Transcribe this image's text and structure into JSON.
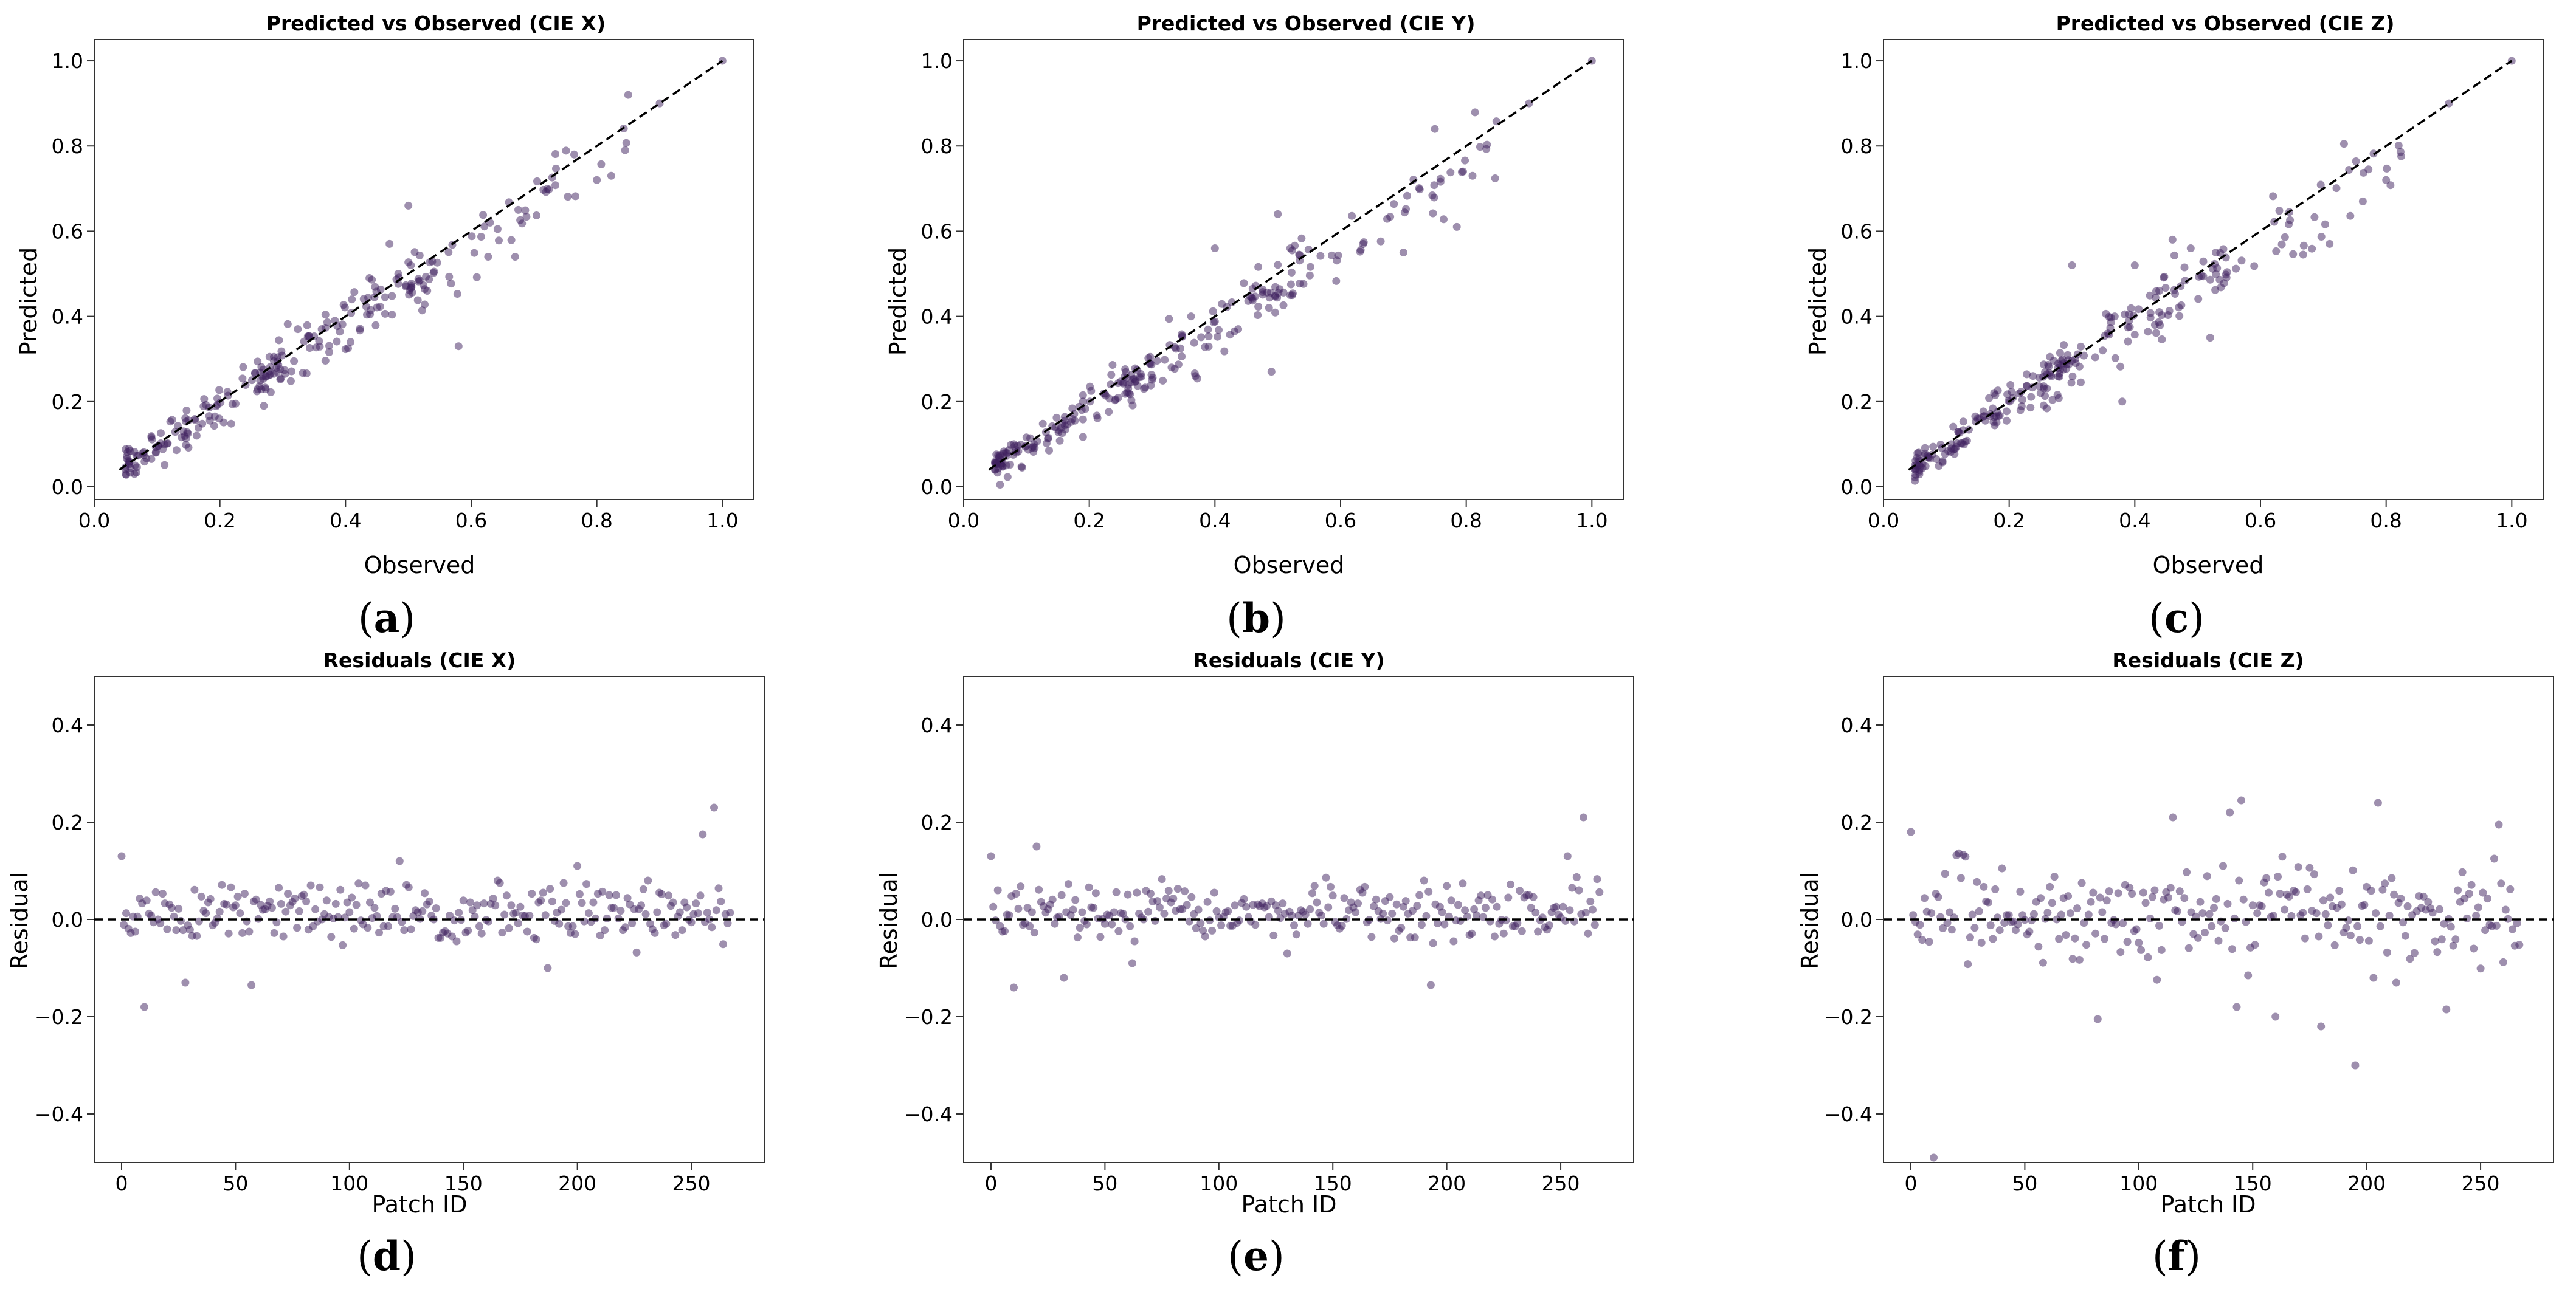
{
  "colors": {
    "point": "#3e1f5e",
    "line": "#000000",
    "axis": "#333333"
  },
  "chart_data": [
    {
      "id": "a",
      "type": "scatter",
      "kind": "pred_obs",
      "title": "Predicted vs Observed (CIE X)",
      "xlabel": "Observed",
      "ylabel": "Predicted",
      "xlim": [
        -0.0,
        1.05
      ],
      "ylim": [
        -0.03,
        1.05
      ],
      "xticks": [
        0.0,
        0.2,
        0.4,
        0.6,
        0.8,
        1.0
      ],
      "yticks": [
        0.0,
        0.2,
        0.4,
        0.6,
        0.8,
        1.0
      ],
      "xtick_labels": [
        "0.0",
        "0.2",
        "0.4",
        "0.6",
        "0.8",
        "1.0"
      ],
      "ytick_labels": [
        "0.0",
        "0.2",
        "0.4",
        "0.6",
        "0.8",
        "1.0"
      ],
      "panel_label": "a",
      "slope": 0.96,
      "noise": 0.045,
      "seed": 11,
      "outliers": [
        [
          0.58,
          0.33
        ],
        [
          0.5,
          0.66
        ],
        [
          0.85,
          0.92
        ],
        [
          0.67,
          0.54
        ],
        [
          0.8,
          0.72
        ],
        [
          0.53,
          0.46
        ],
        [
          0.47,
          0.57
        ]
      ],
      "points": [],
      "reference_line": {
        "style": "dashed",
        "from": [
          0.04,
          0.04
        ],
        "to": [
          1.0,
          1.0
        ]
      }
    },
    {
      "id": "b",
      "type": "scatter",
      "kind": "pred_obs",
      "title": "Predicted vs Observed (CIE Y)",
      "xlabel": "Observed",
      "ylabel": "Predicted",
      "xlim": [
        -0.0,
        1.05
      ],
      "ylim": [
        -0.03,
        1.05
      ],
      "xticks": [
        0.0,
        0.2,
        0.4,
        0.6,
        0.8,
        1.0
      ],
      "yticks": [
        0.0,
        0.2,
        0.4,
        0.6,
        0.8,
        1.0
      ],
      "xtick_labels": [
        "0.0",
        "0.2",
        "0.4",
        "0.6",
        "0.8",
        "1.0"
      ],
      "ytick_labels": [
        "0.0",
        "0.2",
        "0.4",
        "0.6",
        "0.8",
        "1.0"
      ],
      "panel_label": "b",
      "slope": 0.93,
      "noise": 0.04,
      "seed": 23,
      "outliers": [
        [
          0.4,
          0.56
        ],
        [
          0.49,
          0.27
        ],
        [
          0.5,
          0.64
        ],
        [
          0.7,
          0.55
        ],
        [
          0.75,
          0.84
        ],
        [
          0.81,
          0.73
        ],
        [
          0.52,
          0.45
        ]
      ],
      "points": [],
      "reference_line": {
        "style": "dashed",
        "from": [
          0.04,
          0.04
        ],
        "to": [
          1.0,
          1.0
        ]
      }
    },
    {
      "id": "c",
      "type": "scatter",
      "kind": "pred_obs",
      "title": "Predicted vs Observed (CIE Z)",
      "xlabel": "Observed",
      "ylabel": "Predicted",
      "xlim": [
        -0.0,
        1.05
      ],
      "ylim": [
        -0.03,
        1.05
      ],
      "xticks": [
        0.0,
        0.2,
        0.4,
        0.6,
        0.8,
        1.0
      ],
      "yticks": [
        0.0,
        0.2,
        0.4,
        0.6,
        0.8,
        1.0
      ],
      "xtick_labels": [
        "0.0",
        "0.2",
        "0.4",
        "0.6",
        "0.8",
        "1.0"
      ],
      "ytick_labels": [
        "0.0",
        "0.2",
        "0.4",
        "0.6",
        "0.8",
        "1.0"
      ],
      "panel_label": "c",
      "slope": 0.97,
      "noise": 0.045,
      "seed": 37,
      "outliers": [
        [
          0.3,
          0.52
        ],
        [
          0.4,
          0.52
        ],
        [
          0.46,
          0.58
        ],
        [
          0.52,
          0.35
        ],
        [
          0.71,
          0.57
        ],
        [
          0.8,
          0.72
        ],
        [
          0.38,
          0.2
        ]
      ],
      "points": [],
      "reference_line": {
        "style": "dashed",
        "from": [
          0.04,
          0.04
        ],
        "to": [
          1.0,
          1.0
        ]
      }
    },
    {
      "id": "d",
      "type": "scatter",
      "kind": "residual",
      "title": "Residuals (CIE X)",
      "xlabel": "Patch ID",
      "ylabel": "Residual",
      "xlim": [
        -12,
        282
      ],
      "ylim": [
        -0.5,
        0.5
      ],
      "xticks": [
        0,
        50,
        100,
        150,
        200,
        250
      ],
      "yticks": [
        -0.4,
        -0.2,
        0.0,
        0.2,
        0.4
      ],
      "xtick_labels": [
        "0",
        "50",
        "100",
        "150",
        "200",
        "250"
      ],
      "ytick_labels": [
        "−0.4",
        "−0.2",
        "0.0",
        "0.2",
        "0.4"
      ],
      "panel_label": "d",
      "n": 268,
      "noise": 0.045,
      "seed": 51,
      "outliers": [
        [
          0,
          0.13
        ],
        [
          10,
          -0.18
        ],
        [
          28,
          -0.13
        ],
        [
          57,
          -0.135
        ],
        [
          122,
          0.12
        ],
        [
          200,
          0.11
        ],
        [
          255,
          0.175
        ],
        [
          260,
          0.23
        ],
        [
          187,
          -0.1
        ]
      ],
      "points": [],
      "reference_line": {
        "style": "dashed",
        "y": 0.0
      }
    },
    {
      "id": "e",
      "type": "scatter",
      "kind": "residual",
      "title": "Residuals (CIE Y)",
      "xlabel": "Patch ID",
      "ylabel": "Residual",
      "xlim": [
        -12,
        282
      ],
      "ylim": [
        -0.5,
        0.5
      ],
      "xticks": [
        0,
        50,
        100,
        150,
        200,
        250
      ],
      "yticks": [
        -0.4,
        -0.2,
        0.0,
        0.2,
        0.4
      ],
      "xtick_labels": [
        "0",
        "50",
        "100",
        "150",
        "200",
        "250"
      ],
      "ytick_labels": [
        "−0.4",
        "−0.2",
        "0.0",
        "0.2",
        "0.4"
      ],
      "panel_label": "e",
      "n": 268,
      "noise": 0.04,
      "seed": 67,
      "outliers": [
        [
          0,
          0.13
        ],
        [
          10,
          -0.14
        ],
        [
          20,
          0.15
        ],
        [
          32,
          -0.12
        ],
        [
          62,
          -0.09
        ],
        [
          193,
          -0.135
        ],
        [
          260,
          0.21
        ],
        [
          253,
          0.13
        ]
      ],
      "points": [],
      "reference_line": {
        "style": "dashed",
        "y": 0.0
      }
    },
    {
      "id": "f",
      "type": "scatter",
      "kind": "residual",
      "title": "Residuals (CIE Z)",
      "xlabel": "Patch ID",
      "ylabel": "Residual",
      "xlim": [
        -12,
        282
      ],
      "ylim": [
        -0.5,
        0.5
      ],
      "xticks": [
        0,
        50,
        100,
        150,
        200,
        250
      ],
      "yticks": [
        -0.4,
        -0.2,
        0.0,
        0.2,
        0.4
      ],
      "xtick_labels": [
        "0",
        "50",
        "100",
        "150",
        "200",
        "250"
      ],
      "ytick_labels": [
        "−0.4",
        "−0.2",
        "0.0",
        "0.2",
        "0.4"
      ],
      "panel_label": "f",
      "n": 268,
      "noise": 0.07,
      "seed": 83,
      "outliers": [
        [
          10,
          -0.49
        ],
        [
          0,
          0.18
        ],
        [
          82,
          -0.205
        ],
        [
          140,
          0.22
        ],
        [
          145,
          0.245
        ],
        [
          143,
          -0.18
        ],
        [
          160,
          -0.2
        ],
        [
          180,
          -0.22
        ],
        [
          195,
          -0.3
        ],
        [
          205,
          0.24
        ],
        [
          213,
          -0.13
        ],
        [
          235,
          -0.185
        ],
        [
          258,
          0.195
        ],
        [
          115,
          0.21
        ]
      ],
      "points": [],
      "reference_line": {
        "style": "dashed",
        "y": 0.0
      }
    }
  ]
}
